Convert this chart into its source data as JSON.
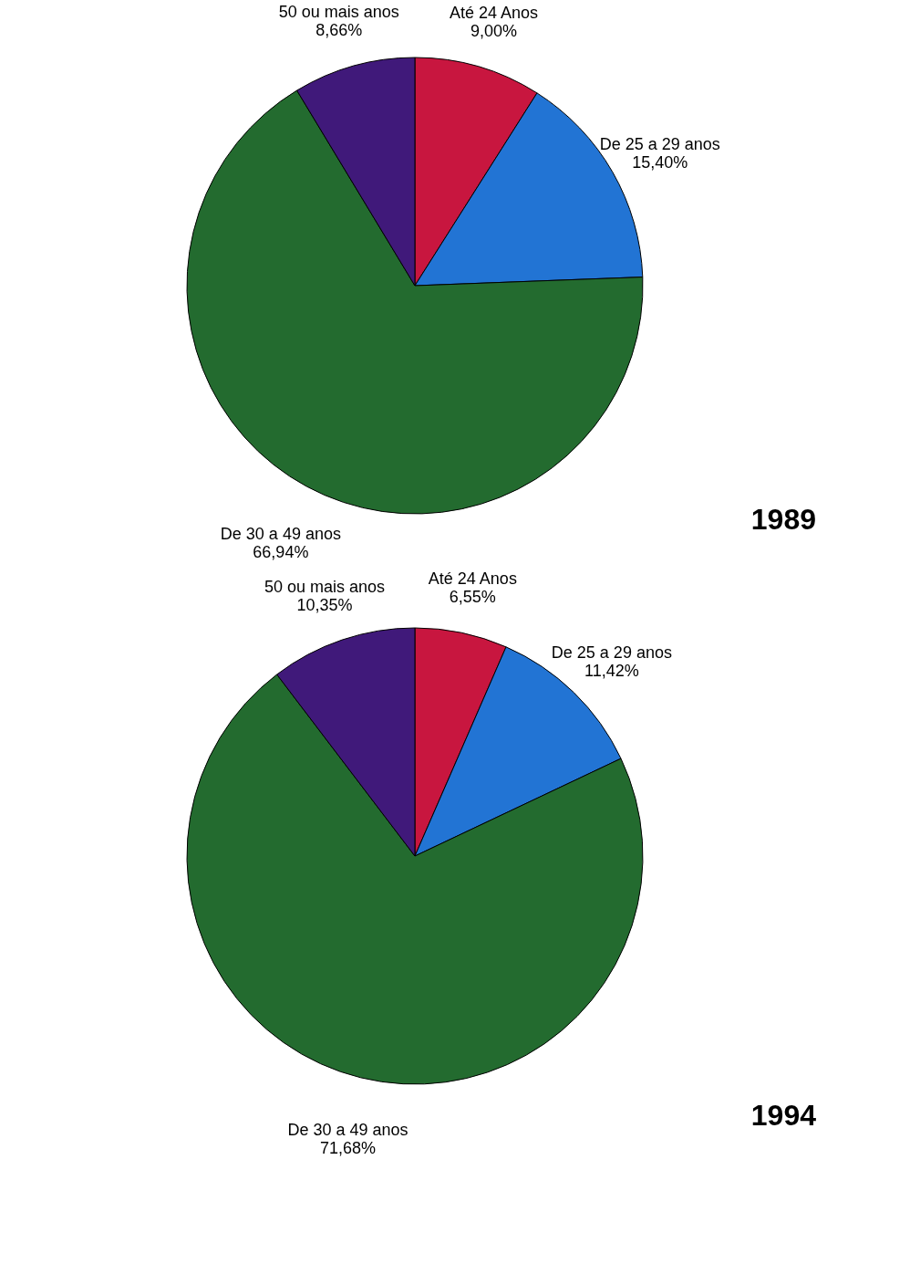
{
  "chart_data": [
    {
      "type": "pie",
      "title": "1989",
      "categories": [
        "Até 24 Anos",
        "De 25 a 29 anos",
        "De 30 a 49 anos",
        "50 ou mais anos"
      ],
      "values": [
        9.0,
        15.4,
        66.94,
        8.66
      ],
      "colors": [
        "#c8163f",
        "#2274d4",
        "#236b2f",
        "#40197a"
      ],
      "value_labels": [
        "9,00%",
        "15,40%",
        "66,94%",
        "8,66%"
      ]
    },
    {
      "type": "pie",
      "title": "1994",
      "categories": [
        "Até 24 Anos",
        "De 25 a 29 anos",
        "De 30 a 49 anos",
        "50 ou mais anos"
      ],
      "values": [
        6.55,
        11.42,
        71.68,
        10.35
      ],
      "colors": [
        "#c8163f",
        "#2274d4",
        "#236b2f",
        "#40197a"
      ],
      "value_labels": [
        "6,55%",
        "11,42%",
        "71,68%",
        "10,35%"
      ]
    }
  ]
}
